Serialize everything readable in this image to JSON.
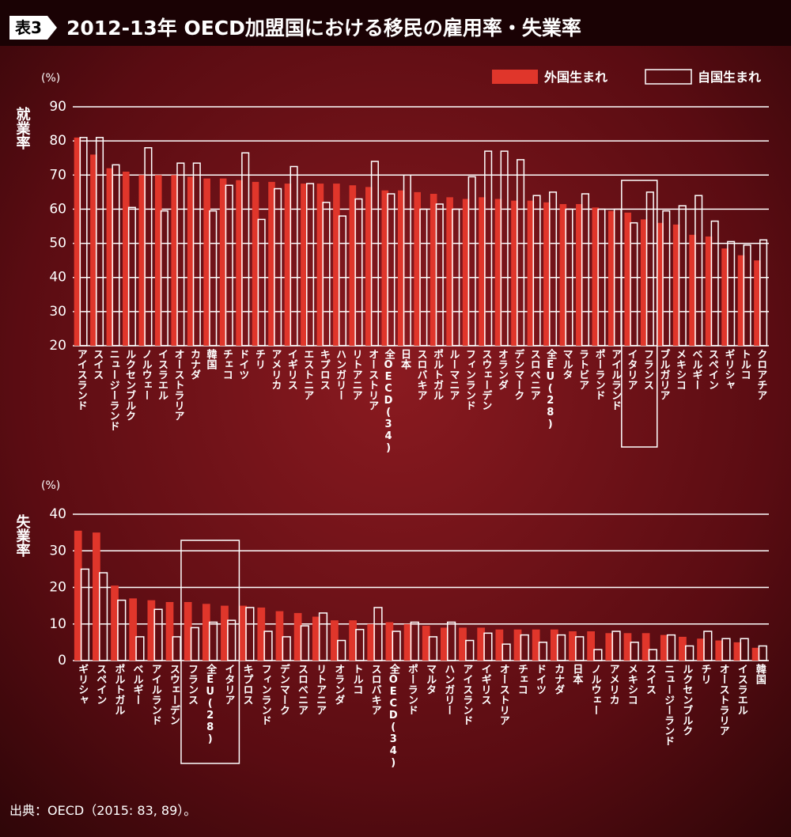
{
  "badge": "表3",
  "title": "2012-13年 OECD加盟国における移民の雇用率・失業率",
  "source": "出典：OECD（2015: 83, 89）。",
  "chart_data": [
    {
      "type": "bar",
      "y_label": "就業率",
      "unit": "(%)",
      "categories": [
        "アイスランド",
        "スイス",
        "ニュージーランド",
        "ルクセンブルク",
        "ノルウェー",
        "イスラエル",
        "オーストラリア",
        "カナダ",
        "韓国",
        "チェコ",
        "ドイツ",
        "チリ",
        "アメリカ",
        "イギリス",
        "エストニア",
        "キプロス",
        "ハンガリー",
        "リトアニア",
        "オーストリア",
        "全OECD(34)",
        "日本",
        "スロバキア",
        "ポルトガル",
        "ルーマニア",
        "フィンランド",
        "スウェーデン",
        "オランダ",
        "デンマーク",
        "スロベニア",
        "全EU(28)",
        "マルタ",
        "ラトビア",
        "ポーランド",
        "アイルランド",
        "イタリア",
        "フランス",
        "ブルガリア",
        "メキシコ",
        "ベルギー",
        "スペイン",
        "ギリシャ",
        "トルコ",
        "クロアチア"
      ],
      "series": [
        {
          "name": "外国生まれ",
          "color": "#e0362b",
          "values": [
            81,
            76,
            72,
            71,
            70,
            70,
            70,
            69.5,
            69,
            69,
            68.5,
            68,
            68,
            67.5,
            67.5,
            67.5,
            67.5,
            67,
            66.5,
            65.5,
            65.5,
            65,
            64.5,
            63.5,
            63,
            63.5,
            63,
            62.5,
            62.5,
            62,
            61.5,
            61.5,
            60.5,
            59.5,
            59,
            57,
            56,
            55.5,
            52.5,
            52,
            48.5,
            46.5,
            45
          ]
        },
        {
          "name": "自国生まれ",
          "color": "#ffffff",
          "values": [
            81,
            81,
            73,
            60.5,
            78,
            59.5,
            73.5,
            73.5,
            59.5,
            67,
            76.5,
            57,
            66,
            72.5,
            67.5,
            62,
            58,
            63,
            74,
            64.5,
            70,
            60,
            61.5,
            60,
            69.5,
            77,
            77,
            74.5,
            64,
            65,
            60,
            64.5,
            60,
            60,
            56,
            65,
            59.5,
            61,
            64,
            56.5,
            50.5,
            49.5,
            51
          ]
        }
      ],
      "ylim": [
        20,
        90
      ],
      "yticks": [
        20,
        30,
        40,
        50,
        60,
        70,
        80,
        90
      ],
      "grid": true
    },
    {
      "type": "bar",
      "y_label": "失業率",
      "unit": "(%)",
      "categories": [
        "ギリシャ",
        "スペイン",
        "ポルトガル",
        "ベルギー",
        "アイルランド",
        "スウェーデン",
        "フランス",
        "全EU(28)",
        "イタリア",
        "キプロス",
        "フィンランド",
        "デンマーク",
        "スロベニア",
        "リトアニア",
        "オランダ",
        "トルコ",
        "スロバキア",
        "全OECD(34)",
        "ポーランド",
        "マルタ",
        "ハンガリー",
        "アイスランド",
        "イギリス",
        "オーストリア",
        "チェコ",
        "ドイツ",
        "カナダ",
        "日本",
        "ノルウェー",
        "アメリカ",
        "メキシコ",
        "スイス",
        "ニュージーランド",
        "ルクセンブルク",
        "チリ",
        "オーストラリア",
        "イスラエル",
        "韓国"
      ],
      "series": [
        {
          "color": "#e0362b",
          "values": [
            35.5,
            35,
            20.5,
            17,
            16.5,
            16,
            16,
            15.5,
            15,
            15,
            14.5,
            13.5,
            13,
            12,
            11,
            11,
            10,
            10.5,
            10,
            9.5,
            9,
            9,
            9,
            8.5,
            8.5,
            8.5,
            8.5,
            8,
            8,
            7.5,
            7.5,
            7.5,
            7,
            6.5,
            6,
            5.5,
            5,
            3.5
          ]
        },
        {
          "color": "#ffffff",
          "values": [
            25,
            24,
            16.5,
            6.5,
            14,
            6.5,
            9,
            10.5,
            11,
            14.5,
            8,
            6.5,
            9.5,
            13,
            5.5,
            8.5,
            14.5,
            8,
            10.5,
            6.5,
            10.5,
            5.5,
            7.5,
            4.5,
            7,
            5,
            7,
            6.5,
            3,
            8,
            5,
            3,
            7,
            4,
            8,
            6,
            6,
            4
          ]
        }
      ],
      "ylim": [
        0,
        40
      ],
      "yticks": [
        0,
        10,
        20,
        30,
        40
      ],
      "grid": true
    }
  ]
}
